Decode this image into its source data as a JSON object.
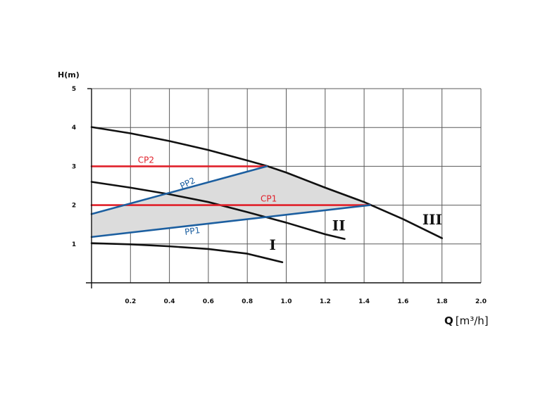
{
  "chart_data": {
    "type": "line",
    "title": "",
    "ylabel": "H(m)",
    "xlabel": {
      "main": "Q",
      "unit": "[m³/h]"
    },
    "xlim": [
      0,
      2.0
    ],
    "ylim": [
      0,
      5
    ],
    "grid": true,
    "x_ticks": [
      {
        "value": 0.2,
        "label": "0.2"
      },
      {
        "value": 0.4,
        "label": "0.4"
      },
      {
        "value": 0.6,
        "label": "0.6"
      },
      {
        "value": 0.8,
        "label": "0.8"
      },
      {
        "value": 1.0,
        "label": "1.0"
      },
      {
        "value": 1.2,
        "label": "1.2"
      },
      {
        "value": 1.4,
        "label": "1.4"
      },
      {
        "value": 1.6,
        "label": "1.6"
      },
      {
        "value": 1.8,
        "label": "1.8"
      },
      {
        "value": 2.0,
        "label": "2.0"
      }
    ],
    "y_ticks": [
      {
        "value": 1,
        "label": "1"
      },
      {
        "value": 2,
        "label": "2"
      },
      {
        "value": 3,
        "label": "3"
      },
      {
        "value": 4,
        "label": "4"
      },
      {
        "value": 5,
        "label": "5"
      }
    ],
    "series": [
      {
        "name": "I",
        "color": "#111111",
        "label_at": [
          0.93,
          0.85
        ],
        "points": [
          [
            0,
            1.02
          ],
          [
            0.2,
            0.99
          ],
          [
            0.4,
            0.94
          ],
          [
            0.6,
            0.87
          ],
          [
            0.8,
            0.75
          ],
          [
            0.98,
            0.53
          ]
        ]
      },
      {
        "name": "II",
        "color": "#111111",
        "label_at": [
          1.27,
          1.35
        ],
        "points": [
          [
            0,
            2.6
          ],
          [
            0.2,
            2.45
          ],
          [
            0.4,
            2.28
          ],
          [
            0.6,
            2.08
          ],
          [
            0.8,
            1.82
          ],
          [
            1.0,
            1.55
          ],
          [
            1.2,
            1.25
          ],
          [
            1.3,
            1.13
          ]
        ]
      },
      {
        "name": "III",
        "color": "#111111",
        "label_at": [
          1.75,
          1.5
        ],
        "points": [
          [
            0,
            4.01
          ],
          [
            0.2,
            3.85
          ],
          [
            0.4,
            3.65
          ],
          [
            0.6,
            3.42
          ],
          [
            0.8,
            3.15
          ],
          [
            0.9,
            3.01
          ],
          [
            1.0,
            2.84
          ],
          [
            1.2,
            2.45
          ],
          [
            1.4,
            2.08
          ],
          [
            1.6,
            1.64
          ],
          [
            1.8,
            1.15
          ]
        ]
      },
      {
        "name": "CP2",
        "color": "#e0202a",
        "label_at": [
          0.28,
          3.09
        ],
        "points": [
          [
            0,
            3.0
          ],
          [
            0.9,
            3.0
          ]
        ]
      },
      {
        "name": "CP1",
        "color": "#e0202a",
        "label_at": [
          0.91,
          2.09
        ],
        "points": [
          [
            0,
            2.0
          ],
          [
            1.43,
            2.0
          ]
        ]
      },
      {
        "name": "PP2",
        "color": "#1c5fa0",
        "label_at": [
          0.5,
          2.5
        ],
        "points": [
          [
            0,
            1.77
          ],
          [
            0.9,
            3.0
          ]
        ]
      },
      {
        "name": "PP1",
        "color": "#1c5fa0",
        "label_at": [
          0.52,
          1.26
        ],
        "points": [
          [
            0,
            1.18
          ],
          [
            1.43,
            2.0
          ]
        ]
      }
    ],
    "shaded_region": {
      "fill": "#dcdcdc",
      "points": [
        [
          0,
          1.77
        ],
        [
          0.9,
          3.0
        ],
        [
          1.0,
          2.84
        ],
        [
          1.2,
          2.45
        ],
        [
          1.43,
          2.0
        ],
        [
          0,
          1.18
        ]
      ]
    }
  }
}
